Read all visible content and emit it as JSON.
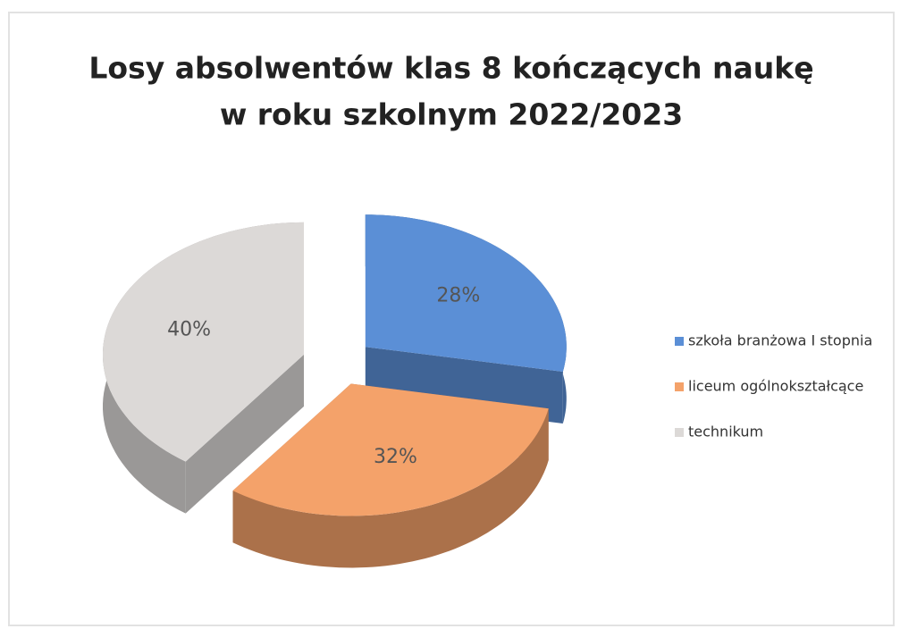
{
  "chart_data": {
    "type": "pie",
    "title": [
      "Losy absolwentów klas 8 kończących naukę",
      "w roku szkolnym 2022/2023"
    ],
    "categories": [
      "szkoła branżowa I stopnia",
      "liceum ogólnokształcące",
      "technikum"
    ],
    "values": [
      28,
      32,
      40
    ],
    "value_labels": [
      "28%",
      "32%",
      "40%"
    ],
    "colors": [
      "#5b8fd6",
      "#f4a26a",
      "#dcd9d7"
    ],
    "legend": "right"
  }
}
